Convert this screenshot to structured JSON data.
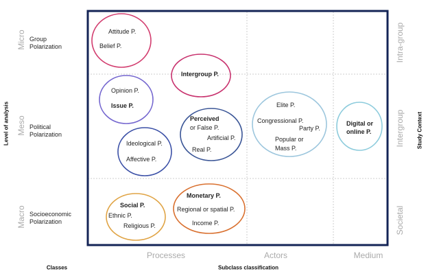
{
  "axes": {
    "left_title": "Level of analysis",
    "right_title": "Study Context",
    "bottom_left_title": "Classes",
    "bottom_title": "Subclass classification"
  },
  "levels": [
    {
      "level": "Micro",
      "class": "Group Polarization",
      "context": "Intra-group"
    },
    {
      "level": "Meso",
      "class": "Political Polarization",
      "context": "Intergroup"
    },
    {
      "level": "Macro",
      "class": "Socioeconomic Polarization",
      "context": "Societal"
    }
  ],
  "subclasses": [
    "Processes",
    "Actors",
    "Medium"
  ],
  "clusters": [
    {
      "id": "attitude",
      "color": "#d23c6e",
      "items": [
        "Attitude P.",
        "Belief P."
      ]
    },
    {
      "id": "intergroup",
      "color": "#c8326e",
      "items": [
        "Intergroup P."
      ]
    },
    {
      "id": "opinion",
      "color": "#7466cf",
      "items": [
        "Opinion P.",
        "Issue P."
      ]
    },
    {
      "id": "ideological",
      "color": "#3a4fa6",
      "items": [
        "Ideological P.",
        "Affective P."
      ]
    },
    {
      "id": "perceived",
      "color": "#3a5596",
      "items": [
        "Perceived",
        "or False P.",
        "Artificial P.",
        "Real P."
      ]
    },
    {
      "id": "elite",
      "color": "#9cc6dd",
      "items": [
        "Elite P.",
        "Congressional P.",
        "Party P.",
        "Popular or",
        "Mass P."
      ]
    },
    {
      "id": "digital",
      "color": "#8ccbdc",
      "items": [
        "Digital or",
        "online P."
      ]
    },
    {
      "id": "social",
      "color": "#e0a445",
      "items": [
        "Social P.",
        "Ethnic P.",
        "Religious P."
      ]
    },
    {
      "id": "monetary",
      "color": "#d9702f",
      "items": [
        "Monetary P.",
        "Regional or spatial P.",
        "Income P."
      ]
    }
  ],
  "frame_color": "#142456"
}
